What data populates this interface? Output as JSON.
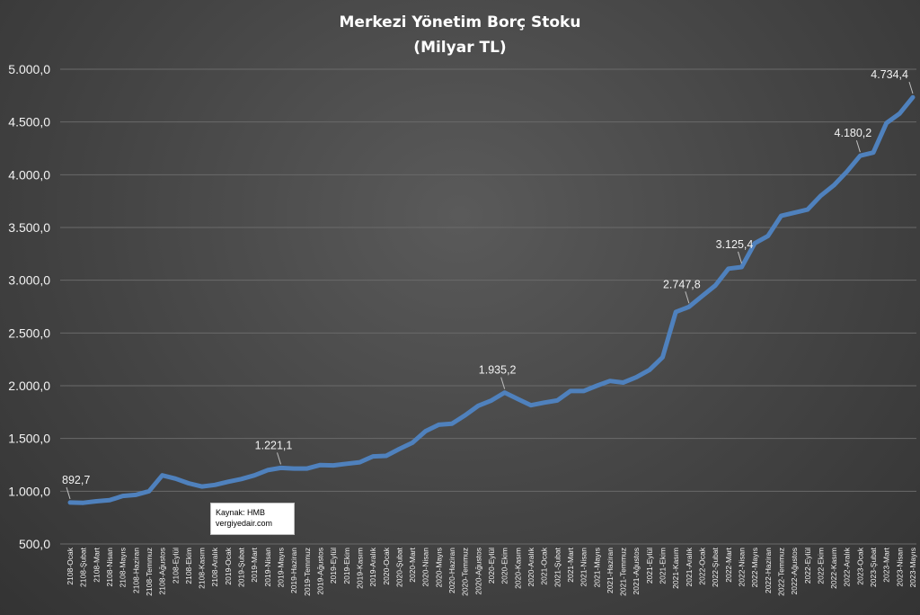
{
  "chart_data": {
    "type": "line",
    "title": "Merkezi Yönetim Borç Stoku",
    "subtitle": "(Milyar TL)",
    "ylim": [
      500,
      5000
    ],
    "yticks": [
      "500,0",
      "1.000,0",
      "1.500,0",
      "2.000,0",
      "2.500,0",
      "3.000,0",
      "3.500,0",
      "4.000,0",
      "4.500,0",
      "5.000,0"
    ],
    "ytick_values": [
      500,
      1000,
      1500,
      2000,
      2500,
      3000,
      3500,
      4000,
      4500,
      5000
    ],
    "grid": true,
    "line_color": "#4f81bd",
    "x": [
      "2108-Ocak",
      "2108-Şubat",
      "2108-Mart",
      "2108-Nisan",
      "2108-Mayıs",
      "2108-Haziran",
      "2108-Temmuz",
      "2108-Ağustos",
      "2108-Eylül",
      "2108-Ekim",
      "2108-Kasım",
      "2108-Aralık",
      "2019-Ocak",
      "2019-Şubat",
      "2019-Mart",
      "2019-Nisan",
      "2019-Mayıs",
      "2019-Haziran",
      "2019-Temmuz",
      "2019-Ağustos",
      "2019-Eylül",
      "2019-Ekim",
      "2019-Kasım",
      "2019-Aralık",
      "2020-Ocak",
      "2020-Şubat",
      "2020-Mart",
      "2020-Nisan",
      "2020-Mayıs",
      "2020-Haziran",
      "2020-Temmuz",
      "2020-Ağustos",
      "2020-Eylül",
      "2020-Ekim",
      "2020-Kasım",
      "2020-Aralık",
      "2021-Ocak",
      "2021-Şubat",
      "2021-Mart",
      "2021-Nisan",
      "2021-Mayıs",
      "2021-Haziran",
      "2021-Temmuz",
      "2021-Ağustos",
      "2021-Eylül",
      "2021-Ekim",
      "2021-Kasım",
      "2021-Aralık",
      "2022-Ocak",
      "2022-Şubat",
      "2022-Mart",
      "2022-Nisan",
      "2022-Mayıs",
      "2022-Haziran",
      "2022-Temmuz",
      "2022-Ağustos",
      "2022-Eylül",
      "2022-Ekim",
      "2022-Kasım",
      "2022-Aralık",
      "2023-Ocak",
      "2023-Şubat",
      "2023-Mart",
      "2023-Nisan",
      "2023-Mayıs"
    ],
    "series": [
      {
        "values": [
          892.7,
          890,
          905,
          915,
          955,
          965,
          1000,
          1150,
          1120,
          1075,
          1045,
          1060,
          1090,
          1115,
          1150,
          1200,
          1221.1,
          1215,
          1215,
          1248,
          1245,
          1260,
          1275,
          1330,
          1335,
          1400,
          1460,
          1570,
          1630,
          1640,
          1720,
          1810,
          1860,
          1935.2,
          1875,
          1815,
          1840,
          1860,
          1950,
          1950,
          2000,
          2045,
          2030,
          2080,
          2150,
          2270,
          2700,
          2747.8,
          2850,
          2950,
          3110,
          3125.4,
          3350,
          3420,
          3610,
          3640,
          3670,
          3800,
          3900,
          4030,
          4180.2,
          4210,
          4490,
          4580,
          4734.4
        ]
      }
    ],
    "data_labels": [
      {
        "index": 0,
        "text": "892,7"
      },
      {
        "index": 16,
        "text": "1.221,1"
      },
      {
        "index": 33,
        "text": "1.935,2"
      },
      {
        "index": 47,
        "text": "2.747,8"
      },
      {
        "index": 51,
        "text": "3.125,4"
      },
      {
        "index": 60,
        "text": "4.180,2"
      },
      {
        "index": 64,
        "text": "4.734,4"
      }
    ],
    "annotation": {
      "line1": "Kaynak: HMB",
      "line2": "vergiyedair.com"
    }
  }
}
